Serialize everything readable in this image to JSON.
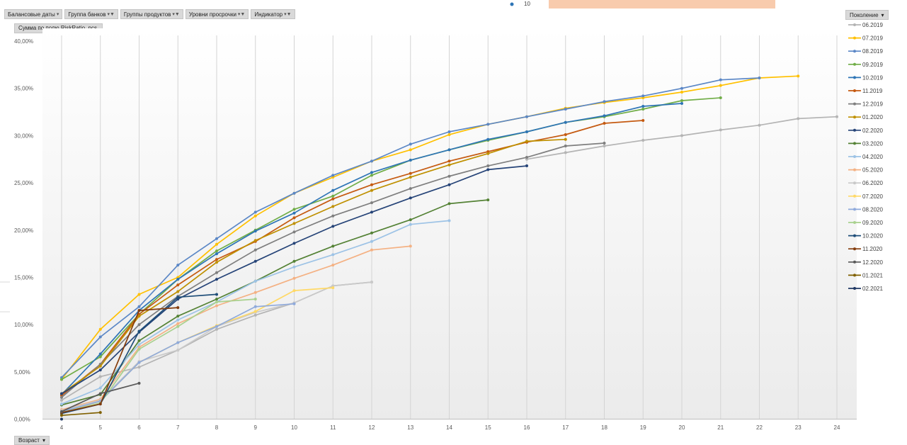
{
  "filters": [
    {
      "label": "Балансовые даты",
      "icon": "dropdown-icon"
    },
    {
      "label": "Группа банков",
      "icon": "filter-icon"
    },
    {
      "label": "Группы продуктов",
      "icon": "filter-icon"
    },
    {
      "label": "Уровни просрочки",
      "icon": "filter-icon"
    },
    {
      "label": "Индикатор",
      "icon": "filter-icon"
    }
  ],
  "value_field_label": "Сумма по полю RiskRatio, pcs.",
  "legend_field_label": "Поколение",
  "axis_field_label": "Возраст",
  "top_partial_text": "10",
  "chart_data": {
    "type": "line",
    "x": [
      4,
      5,
      6,
      7,
      8,
      9,
      10,
      11,
      12,
      13,
      14,
      15,
      16,
      17,
      18,
      19,
      20,
      21,
      22,
      23,
      24
    ],
    "y_ticks": [
      "0,00%",
      "5,00%",
      "10,00%",
      "15,00%",
      "20,00%",
      "25,00%",
      "30,00%",
      "35,00%",
      "40,00%"
    ],
    "ylim": [
      0,
      40
    ],
    "y_unit": "%",
    "grid": "vertical",
    "legend": "right",
    "series": [
      {
        "name": "06.2019",
        "color": "#b4b4b4",
        "values": [
          2.0,
          4.5,
          5.5,
          7.3,
          9.5,
          11.0,
          12.3,
          14.1,
          14.5,
          null,
          null,
          null,
          27.5,
          28.2,
          28.9,
          29.5,
          30.0,
          30.6,
          31.1,
          31.8,
          32.0
        ]
      },
      {
        "name": "07.2019",
        "color": "#ffc000",
        "values": [
          4.2,
          9.5,
          13.2,
          15.0,
          18.5,
          21.5,
          23.9,
          25.6,
          27.3,
          28.5,
          30.1,
          31.2,
          32.0,
          32.9,
          33.5,
          34.0,
          34.6,
          35.3,
          36.1,
          36.3,
          null
        ]
      },
      {
        "name": "08.2019",
        "color": "#5b87c6",
        "values": [
          4.4,
          8.7,
          11.9,
          16.3,
          19.1,
          21.9,
          23.9,
          25.8,
          27.3,
          29.1,
          30.4,
          31.2,
          32.0,
          32.8,
          33.6,
          34.2,
          35.0,
          35.9,
          36.1,
          null,
          null
        ]
      },
      {
        "name": "09.2019",
        "color": "#70ad47",
        "values": [
          4.2,
          6.6,
          11.1,
          14.8,
          17.8,
          20.0,
          22.2,
          23.6,
          25.8,
          27.4,
          28.5,
          29.5,
          30.4,
          31.4,
          32.0,
          32.8,
          33.7,
          34.0,
          null,
          null,
          null
        ]
      },
      {
        "name": "10.2019",
        "color": "#2e75b6",
        "values": [
          2.6,
          6.9,
          11.5,
          14.8,
          17.5,
          19.9,
          21.8,
          24.2,
          26.1,
          27.4,
          28.5,
          29.6,
          30.4,
          31.4,
          32.1,
          33.1,
          33.4,
          null,
          null,
          null,
          null
        ]
      },
      {
        "name": "11.2019",
        "color": "#c55a11",
        "values": [
          2.5,
          5.8,
          11.1,
          14.2,
          16.9,
          18.8,
          21.3,
          23.3,
          24.8,
          26.0,
          27.3,
          28.3,
          29.3,
          30.1,
          31.3,
          31.6,
          null,
          null,
          null,
          null,
          null
        ]
      },
      {
        "name": "12.2019",
        "color": "#7f7f7f",
        "values": [
          2.3,
          5.8,
          10.0,
          13.0,
          15.5,
          17.9,
          19.8,
          21.5,
          22.9,
          24.4,
          25.7,
          26.8,
          27.7,
          28.9,
          29.2,
          null,
          null,
          null,
          null,
          null,
          null
        ]
      },
      {
        "name": "01.2020",
        "color": "#bf9000",
        "values": [
          2.7,
          5.6,
          10.9,
          13.5,
          16.6,
          18.9,
          20.7,
          22.5,
          24.2,
          25.6,
          26.9,
          28.1,
          29.4,
          29.6,
          null,
          null,
          null,
          null,
          null,
          null,
          null
        ]
      },
      {
        "name": "02.2020",
        "color": "#264478",
        "values": [
          2.7,
          5.2,
          9.2,
          12.7,
          14.8,
          16.7,
          18.6,
          20.4,
          21.9,
          23.4,
          24.8,
          26.4,
          26.8,
          null,
          null,
          null,
          null,
          null,
          null,
          null,
          null
        ]
      },
      {
        "name": "03.2020",
        "color": "#548235",
        "values": [
          1.5,
          2.6,
          8.3,
          10.9,
          12.7,
          14.6,
          16.7,
          18.3,
          19.7,
          21.1,
          22.8,
          23.2,
          null,
          null,
          null,
          null,
          null,
          null,
          null,
          null,
          null
        ]
      },
      {
        "name": "04.2020",
        "color": "#9dc3e6",
        "values": [
          1.6,
          3.3,
          7.9,
          10.5,
          12.4,
          14.6,
          16.1,
          17.4,
          18.8,
          20.6,
          21.0,
          null,
          null,
          null,
          null,
          null,
          null,
          null,
          null,
          null,
          null
        ]
      },
      {
        "name": "05.2020",
        "color": "#f4b183",
        "values": [
          1.0,
          2.1,
          7.6,
          10.1,
          12.0,
          13.4,
          14.9,
          16.3,
          17.9,
          18.3,
          null,
          null,
          null,
          null,
          null,
          null,
          null,
          null,
          null,
          null,
          null
        ]
      },
      {
        "name": "06.2020",
        "color": "#c9c9c9",
        "values": [
          0.9,
          2.0,
          6.1,
          7.3,
          9.8,
          11.3,
          12.3,
          14.1,
          14.5,
          null,
          null,
          null,
          null,
          null,
          null,
          null,
          null,
          null,
          null,
          null,
          null
        ]
      },
      {
        "name": "07.2020",
        "color": "#ffd966",
        "values": [
          0.7,
          1.9,
          6.0,
          8.1,
          9.9,
          11.4,
          13.6,
          13.9,
          null,
          null,
          null,
          null,
          null,
          null,
          null,
          null,
          null,
          null,
          null,
          null,
          null
        ]
      },
      {
        "name": "08.2020",
        "color": "#8faadc",
        "values": [
          0.8,
          1.9,
          6.0,
          8.1,
          9.8,
          11.9,
          12.2,
          null,
          null,
          null,
          null,
          null,
          null,
          null,
          null,
          null,
          null,
          null,
          null,
          null,
          null
        ]
      },
      {
        "name": "09.2020",
        "color": "#a9d18e",
        "values": [
          0.7,
          1.7,
          7.4,
          9.8,
          12.4,
          12.7,
          null,
          null,
          null,
          null,
          null,
          null,
          null,
          null,
          null,
          null,
          null,
          null,
          null,
          null,
          null
        ]
      },
      {
        "name": "10.2020",
        "color": "#1f4e79",
        "values": [
          0.6,
          1.6,
          9.3,
          12.9,
          13.2,
          null,
          null,
          null,
          null,
          null,
          null,
          null,
          null,
          null,
          null,
          null,
          null,
          null,
          null,
          null,
          null
        ]
      },
      {
        "name": "11.2020",
        "color": "#843c0c",
        "values": [
          0.7,
          1.6,
          11.5,
          11.8,
          null,
          null,
          null,
          null,
          null,
          null,
          null,
          null,
          null,
          null,
          null,
          null,
          null,
          null,
          null,
          null,
          null
        ]
      },
      {
        "name": "12.2020",
        "color": "#595959",
        "values": [
          0.8,
          2.7,
          3.8,
          null,
          null,
          null,
          null,
          null,
          null,
          null,
          null,
          null,
          null,
          null,
          null,
          null,
          null,
          null,
          null,
          null,
          null
        ]
      },
      {
        "name": "01.2021",
        "color": "#806000",
        "values": [
          0.4,
          0.7,
          null,
          null,
          null,
          null,
          null,
          null,
          null,
          null,
          null,
          null,
          null,
          null,
          null,
          null,
          null,
          null,
          null,
          null,
          null
        ]
      },
      {
        "name": "02.2021",
        "color": "#203864",
        "values": [
          0.0,
          null,
          null,
          null,
          null,
          null,
          null,
          null,
          null,
          null,
          null,
          null,
          null,
          null,
          null,
          null,
          null,
          null,
          null,
          null,
          null
        ]
      }
    ]
  }
}
